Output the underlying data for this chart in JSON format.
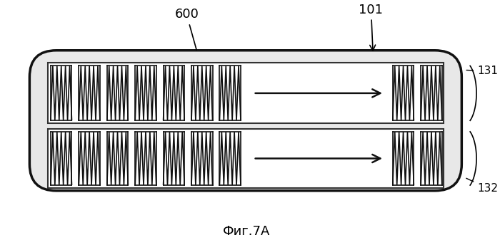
{
  "fig_width": 7.0,
  "fig_height": 3.44,
  "dpi": 100,
  "bg_color": "#ffffff",
  "label_600": "600",
  "label_101": "101",
  "label_131": "131",
  "label_132": "132",
  "caption": "Фиг.7A",
  "spring_color": "#111111",
  "arrow_color": "#111111",
  "outer_lw": 2.5,
  "inner_lw": 1.5
}
